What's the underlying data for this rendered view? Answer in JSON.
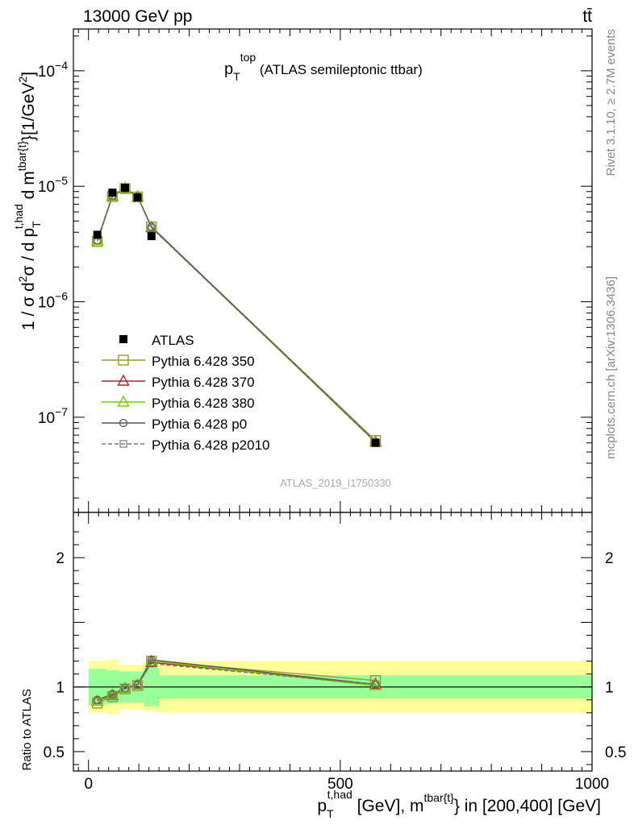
{
  "header": {
    "left": "13000 GeV pp",
    "right": "tt̄"
  },
  "side_labels": {
    "rivet": "Rivet 3.1.10, ≥ 2.7M events",
    "mcplots": "mcplots.cern.ch [arXiv:1306.3436]"
  },
  "watermark": "ATLAS_2019_I1750330",
  "chart_data": {
    "type": "line",
    "title": {
      "main": "p",
      "sub": "T",
      "sup": "top",
      "rest": " (ATLAS semileptonic ttbar)"
    },
    "xlabel": "p_T^{t,had} [GeV], m^{tbar{t}} in [200,400] [GeV]",
    "xlabel_parts": {
      "p": "p",
      "p_sub": "T",
      "p_sup": "t,had",
      "mid": " [GeV], m",
      "m_sup": "tbar{t}",
      "rest": "} in [200,400] [GeV]"
    },
    "ylabel": "1 / σ d²σ / d p_T^{t,had} d m^{tbar{t}} [1/GeV²]",
    "ylabel_parts": {
      "a": "1 / σ d",
      "a_sup": "2",
      "b": "σ / d p",
      "b_sub": "T",
      "b_sup": "t,had",
      "c": " d m",
      "c_sup": "tbar{t}",
      "d": "}[1/GeV",
      "d_sup": "2",
      "e": "]"
    },
    "ratio_ylabel": "Ratio to ATLAS",
    "xlim": [
      -30,
      1000
    ],
    "ylim": [
      1.5e-08,
      0.00023
    ],
    "yscale": "log",
    "ratio_ylim": [
      0.35,
      2.35
    ],
    "x_ticks": [
      0,
      500,
      1000
    ],
    "x_tick_labels": [
      "0",
      "500",
      "1000"
    ],
    "y_ticks": [
      1e-07,
      1e-06,
      1e-05,
      0.0001
    ],
    "y_tick_labels": [
      {
        "base": "10",
        "exp": "−7"
      },
      {
        "base": "10",
        "exp": "−6"
      },
      {
        "base": "10",
        "exp": "−5"
      },
      {
        "base": "10",
        "exp": "−4"
      }
    ],
    "ratio_ticks": [
      0.5,
      1,
      2
    ],
    "ratio_tick_labels": [
      "0.5",
      "1",
      "2"
    ],
    "x": [
      17.5,
      47.5,
      72.5,
      97.5,
      125,
      570
    ],
    "bins": [
      [
        0,
        35
      ],
      [
        35,
        60
      ],
      [
        60,
        85
      ],
      [
        85,
        110
      ],
      [
        110,
        140
      ],
      [
        140,
        1000
      ]
    ],
    "data": {
      "name": "ATLAS",
      "values": [
        3.8e-06,
        8.8e-06,
        9.7e-06,
        8e-06,
        3.7e-06,
        6e-08
      ],
      "band_green": [
        0.14,
        0.13,
        0.12,
        0.12,
        0.15,
        0.09
      ],
      "band_yellow": [
        0.2,
        0.21,
        0.17,
        0.17,
        0.19,
        0.2
      ],
      "color": "#000000"
    },
    "series": [
      {
        "name": "Pythia 6.428 350",
        "color": "#999933",
        "marker": "square-open",
        "dash": "",
        "ratio": [
          0.875,
          0.925,
          0.985,
          1.01,
          1.2,
          1.05
        ]
      },
      {
        "name": "Pythia 6.428 370",
        "color": "#aa2233",
        "marker": "triangle-open",
        "dash": "",
        "ratio": [
          0.89,
          0.935,
          0.99,
          1.015,
          1.19,
          1.02
        ]
      },
      {
        "name": "Pythia 6.428 380",
        "color": "#77cc00",
        "marker": "triangle-open",
        "dash": "",
        "ratio": [
          0.89,
          0.94,
          0.99,
          1.015,
          1.2,
          1.01
        ]
      },
      {
        "name": "Pythia 6.428 p0",
        "color": "#555555",
        "marker": "circle-open",
        "dash": "",
        "ratio": [
          0.9,
          0.945,
          0.99,
          1.02,
          1.21,
          1.02
        ]
      },
      {
        "name": "Pythia 6.428 p2010",
        "color": "#777777",
        "marker": "square-open-small",
        "dash": "5,3",
        "ratio": [
          0.895,
          0.94,
          0.99,
          1.015,
          1.18,
          1.02
        ]
      }
    ],
    "band_colors": {
      "green": "#99ff99",
      "yellow": "#ffff99"
    },
    "legend_position": "left-middle",
    "grid": false
  }
}
